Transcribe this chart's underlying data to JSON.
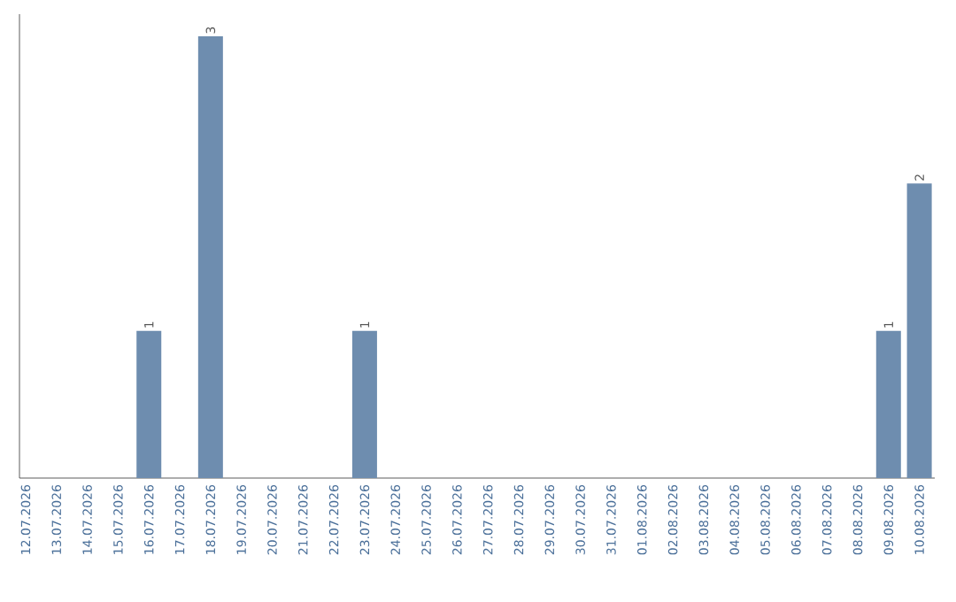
{
  "chart_data": {
    "type": "bar",
    "categories": [
      "12.07.2026",
      "13.07.2026",
      "14.07.2026",
      "15.07.2026",
      "16.07.2026",
      "17.07.2026",
      "18.07.2026",
      "19.07.2026",
      "20.07.2026",
      "21.07.2026",
      "22.07.2026",
      "23.07.2026",
      "24.07.2026",
      "25.07.2026",
      "26.07.2026",
      "27.07.2026",
      "28.07.2026",
      "29.07.2026",
      "30.07.2026",
      "31.07.2026",
      "01.08.2026",
      "02.08.2026",
      "03.08.2026",
      "04.08.2026",
      "05.08.2026",
      "06.08.2026",
      "07.08.2026",
      "08.08.2026",
      "09.08.2026",
      "10.08.2026"
    ],
    "values": [
      0,
      0,
      0,
      0,
      1,
      0,
      3,
      0,
      0,
      0,
      0,
      1,
      0,
      0,
      0,
      0,
      0,
      0,
      0,
      0,
      0,
      0,
      0,
      0,
      0,
      0,
      0,
      0,
      1,
      2
    ],
    "value_labels": [
      null,
      null,
      null,
      null,
      "1",
      null,
      "3",
      null,
      null,
      null,
      null,
      "1",
      null,
      null,
      null,
      null,
      null,
      null,
      null,
      null,
      null,
      null,
      null,
      null,
      null,
      null,
      null,
      null,
      "1",
      "2"
    ],
    "color": "#6e8daf",
    "ylim": [
      0,
      3.15
    ],
    "tick_labels": "x"
  }
}
